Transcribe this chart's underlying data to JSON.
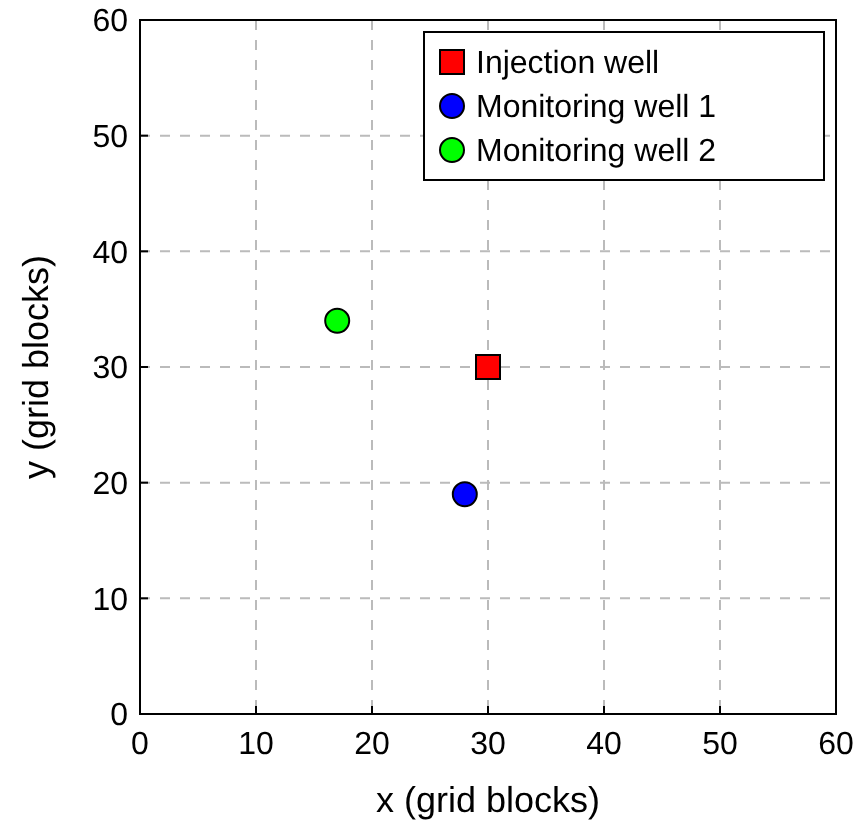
{
  "chart_data": {
    "type": "scatter",
    "xlabel": "x (grid blocks)",
    "ylabel": "y (grid blocks)",
    "xlim": [
      0,
      60
    ],
    "ylim": [
      0,
      60
    ],
    "xticks": [
      0,
      10,
      20,
      30,
      40,
      50,
      60
    ],
    "yticks": [
      0,
      10,
      20,
      30,
      40,
      50,
      60
    ],
    "grid": true,
    "legend": "top right",
    "series": [
      {
        "name": "Injection well",
        "color": "#ff0000",
        "marker": "square",
        "x": [
          30
        ],
        "values": [
          30
        ]
      },
      {
        "name": "Monitoring well 1",
        "color": "#0000ff",
        "marker": "circle",
        "x": [
          28
        ],
        "values": [
          19
        ]
      },
      {
        "name": "Monitoring well 2",
        "color": "#00ff00",
        "marker": "circle",
        "x": [
          17
        ],
        "values": [
          34
        ]
      }
    ]
  }
}
